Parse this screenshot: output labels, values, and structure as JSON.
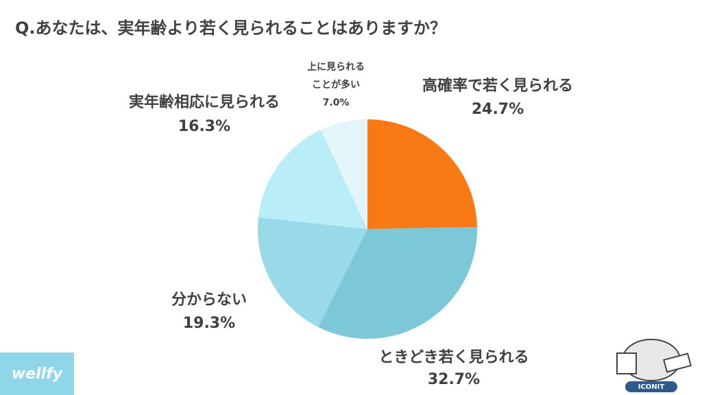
{
  "chart_data": {
    "type": "pie",
    "title": "Q.あなたは、実年齢より若く見られることはありますか？",
    "categories": [
      "高確率で若く見られる",
      "ときどき若く見られる",
      "分からない",
      "実年齢相応に見られる",
      "上に見られる\nことが多い"
    ],
    "values": [
      24.7,
      32.7,
      19.3,
      16.3,
      7.0
    ],
    "value_labels": [
      "24.7%",
      "32.7%",
      "19.3%",
      "16.3%",
      "7.0%"
    ],
    "colors": [
      "#f97a14",
      "#7cc8d8",
      "#98dae7",
      "#b9edf8",
      "#e4f5fa"
    ],
    "footer_left": "wellfy",
    "footer_right": "ICONIT"
  }
}
